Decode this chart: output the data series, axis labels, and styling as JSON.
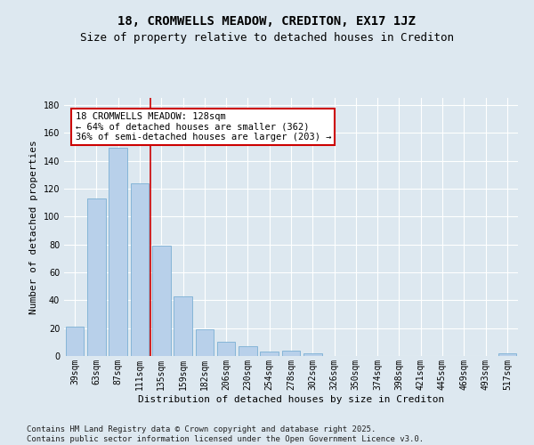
{
  "title": "18, CROMWELLS MEADOW, CREDITON, EX17 1JZ",
  "subtitle": "Size of property relative to detached houses in Crediton",
  "xlabel": "Distribution of detached houses by size in Crediton",
  "ylabel": "Number of detached properties",
  "categories": [
    "39sqm",
    "63sqm",
    "87sqm",
    "111sqm",
    "135sqm",
    "159sqm",
    "182sqm",
    "206sqm",
    "230sqm",
    "254sqm",
    "278sqm",
    "302sqm",
    "326sqm",
    "350sqm",
    "374sqm",
    "398sqm",
    "421sqm",
    "445sqm",
    "469sqm",
    "493sqm",
    "517sqm"
  ],
  "values": [
    21,
    113,
    149,
    124,
    79,
    43,
    19,
    10,
    7,
    3,
    4,
    2,
    0,
    0,
    0,
    0,
    0,
    0,
    0,
    0,
    2
  ],
  "bar_color": "#b8d0ea",
  "bar_edge_color": "#7aafd4",
  "bar_width": 0.85,
  "vline_index": 3.5,
  "vline_color": "#cc0000",
  "annotation_text": "18 CROMWELLS MEADOW: 128sqm\n← 64% of detached houses are smaller (362)\n36% of semi-detached houses are larger (203) →",
  "annotation_box_facecolor": "#ffffff",
  "annotation_box_edgecolor": "#cc0000",
  "ylim": [
    0,
    185
  ],
  "yticks": [
    0,
    20,
    40,
    60,
    80,
    100,
    120,
    140,
    160,
    180
  ],
  "bg_color": "#dde8f0",
  "plot_bg_color": "#dde8f0",
  "grid_color": "#ffffff",
  "footer_text": "Contains HM Land Registry data © Crown copyright and database right 2025.\nContains public sector information licensed under the Open Government Licence v3.0.",
  "title_fontsize": 10,
  "subtitle_fontsize": 9,
  "axis_label_fontsize": 8,
  "tick_fontsize": 7,
  "annotation_fontsize": 7.5,
  "footer_fontsize": 6.5
}
